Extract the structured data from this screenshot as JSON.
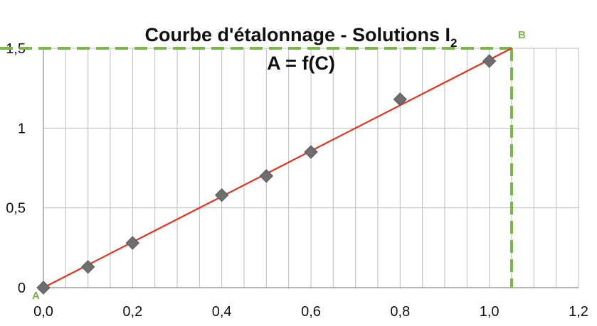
{
  "chart_data": {
    "type": "scatter",
    "title": "Courbe d'étalonnage - Solutions I",
    "title_subscript": "2",
    "subtitle": "A = f(C)",
    "xlabel": "",
    "ylabel": "",
    "xlim": [
      0,
      1.2
    ],
    "ylim": [
      0,
      1.5
    ],
    "x_ticks": [
      0,
      0.2,
      0.4,
      0.6,
      0.8,
      1.0,
      1.2
    ],
    "x_tick_labels": [
      "0,0",
      "0,2",
      "0,4",
      "0,6",
      "0,8",
      "1,0",
      "1,2"
    ],
    "y_ticks": [
      0,
      0.5,
      1,
      1.5
    ],
    "y_tick_labels": [
      "0",
      "0,5",
      "1",
      "1,5"
    ],
    "x_minor_step": 0.05,
    "y_grid_step": 0.5,
    "grid": true,
    "series": [
      {
        "values": [
          {
            "x": 0.0,
            "y": 0.0
          },
          {
            "x": 0.1,
            "y": 0.13
          },
          {
            "x": 0.2,
            "y": 0.28
          },
          {
            "x": 0.4,
            "y": 0.58
          },
          {
            "x": 0.5,
            "y": 0.7
          },
          {
            "x": 0.6,
            "y": 0.85
          },
          {
            "x": 0.8,
            "y": 1.18
          },
          {
            "x": 1.0,
            "y": 1.42
          }
        ],
        "marker": "diamond",
        "color": "#6e6e6e"
      }
    ],
    "trendline": {
      "x0": 0.0,
      "y0": 0.0,
      "x1": 1.05,
      "y1": 1.5,
      "color": "#e8311c"
    },
    "reference_lines": {
      "color": "#7ab648",
      "horizontal_y": 1.5,
      "vertical_x": 1.05
    },
    "point_labels": [
      {
        "text": "A",
        "x": 0.0,
        "y": 0.0
      },
      {
        "text": "B",
        "x": 1.05,
        "y": 1.5
      }
    ]
  }
}
